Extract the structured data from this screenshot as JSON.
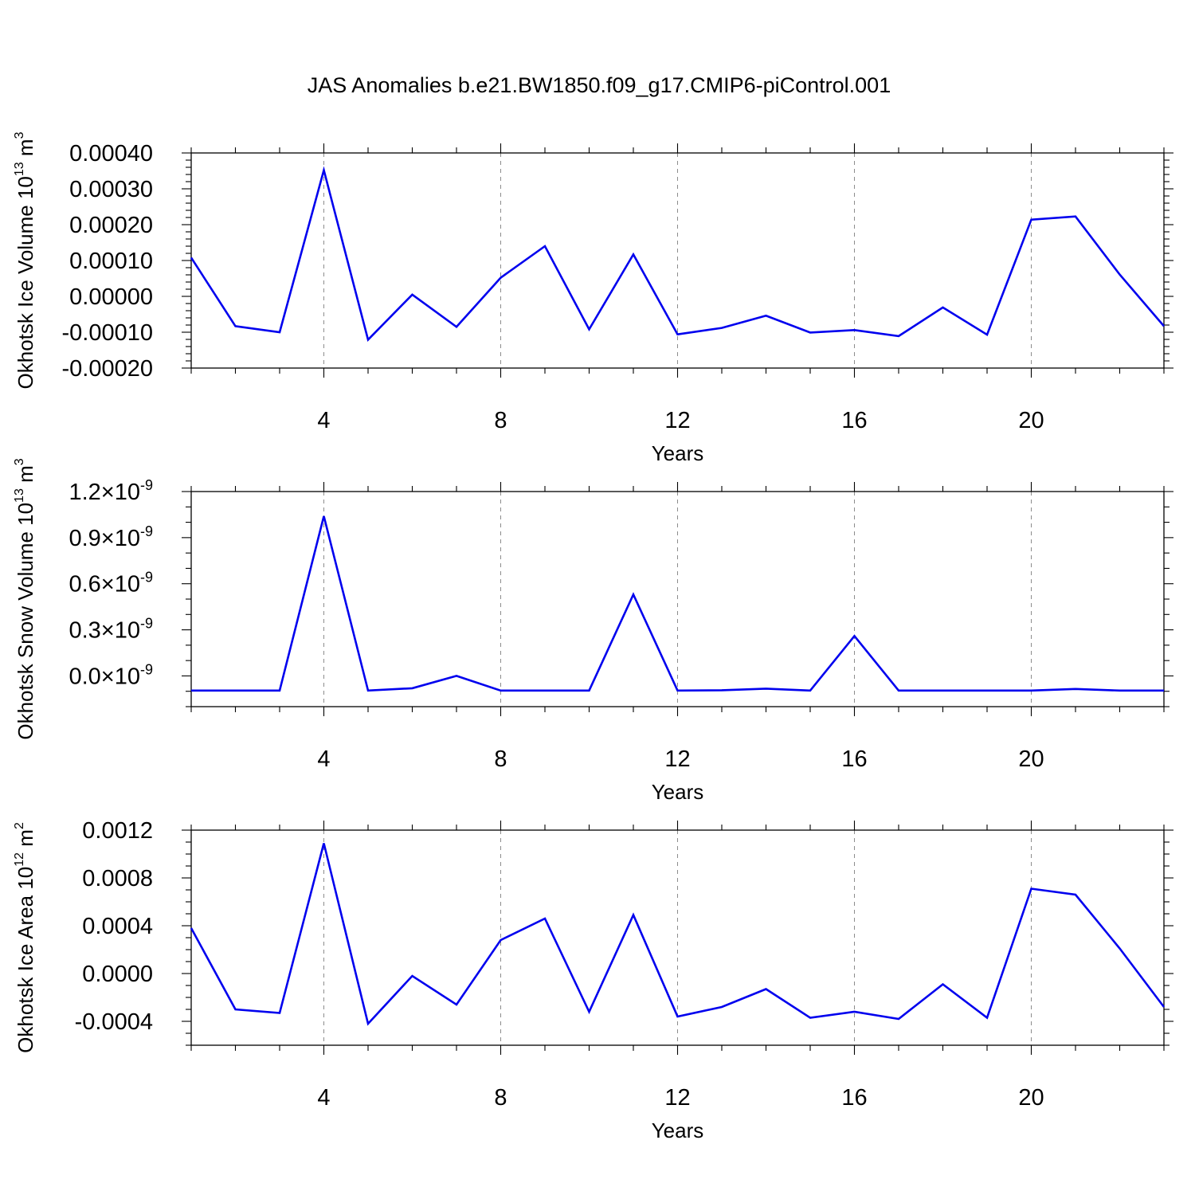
{
  "figure": {
    "title": "JAS Anomalies b.e21.BW1850.f09_g17.CMIP6-piControl.001"
  },
  "chart_data": [
    {
      "type": "line",
      "xlabel": "Years",
      "ylabel": {
        "text": "Okhotsk Ice Volume 10",
        "sup1": "13",
        "mid": " m",
        "sup2": "3"
      },
      "xlim": [
        1,
        23
      ],
      "ylim": [
        -0.0002,
        0.0004
      ],
      "x_ticks": [
        4,
        8,
        12,
        16,
        20
      ],
      "x_tick_labels": [
        "4",
        "8",
        "12",
        "16",
        "20"
      ],
      "y_ticks": [
        -0.0002,
        -0.0001,
        0.0,
        0.0001,
        0.0002,
        0.0003,
        0.0004
      ],
      "y_tick_labels": [
        "-0.00020",
        "-0.00010",
        "0.00000",
        "0.00010",
        "0.00020",
        "0.00030",
        "0.00040"
      ],
      "y_minor_step": 2e-05,
      "grid": "vertical-dashed",
      "color": "#0000ee",
      "series": [
        {
          "x": [
            1,
            2,
            3,
            4,
            5,
            6,
            7,
            8,
            9,
            10,
            11,
            12,
            13,
            14,
            15,
            16,
            17,
            18,
            19,
            20,
            21,
            22,
            23
          ],
          "values": [
            0.000108,
            -8.3e-05,
            -0.0001,
            0.000352,
            -0.000121,
            5e-06,
            -8.5e-05,
            5.2e-05,
            0.00014,
            -9.2e-05,
            0.000117,
            -0.000106,
            -8.8e-05,
            -5.4e-05,
            -0.000101,
            -9.4e-05,
            -0.000111,
            -3.1e-05,
            -0.000107,
            0.000214,
            0.000223,
            6.1e-05,
            -8.3e-05
          ]
        }
      ]
    },
    {
      "type": "line",
      "xlabel": "Years",
      "ylabel": {
        "text": "Okhotsk Snow Volume 10",
        "sup1": "13",
        "mid": " m",
        "sup2": "3"
      },
      "xlim": [
        1,
        23
      ],
      "ylim": [
        -0.2,
        1.2
      ],
      "x_ticks": [
        4,
        8,
        12,
        16,
        20
      ],
      "x_tick_labels": [
        "4",
        "8",
        "12",
        "16",
        "20"
      ],
      "y_ticks": [
        0.0,
        0.3,
        0.6,
        0.9,
        1.2
      ],
      "y_tick_labels": [
        {
          "mantissa": "0.0",
          "times": "×10",
          "exp": "-9"
        },
        {
          "mantissa": "0.3",
          "times": "×10",
          "exp": "-9"
        },
        {
          "mantissa": "0.6",
          "times": "×10",
          "exp": "-9"
        },
        {
          "mantissa": "0.9",
          "times": "×10",
          "exp": "-9"
        },
        {
          "mantissa": "1.2",
          "times": "×10",
          "exp": "-9"
        }
      ],
      "y_minor_step": 0.1,
      "grid": "vertical-dashed",
      "color": "#0000ee",
      "series": [
        {
          "x": [
            1,
            2,
            3,
            4,
            5,
            6,
            7,
            8,
            9,
            10,
            11,
            12,
            13,
            14,
            15,
            16,
            17,
            18,
            19,
            20,
            21,
            22,
            23
          ],
          "values": [
            -0.095,
            -0.095,
            -0.095,
            1.04,
            -0.095,
            -0.08,
            0.0,
            -0.095,
            -0.095,
            -0.095,
            0.53,
            -0.095,
            -0.093,
            -0.083,
            -0.095,
            0.26,
            -0.095,
            -0.095,
            -0.095,
            -0.095,
            -0.085,
            -0.095,
            -0.095
          ]
        }
      ]
    },
    {
      "type": "line",
      "xlabel": "Years",
      "ylabel": {
        "text": "Okhotsk Ice Area 10",
        "sup1": "12",
        "mid": " m",
        "sup2": "2"
      },
      "xlim": [
        1,
        23
      ],
      "ylim": [
        -0.0006,
        0.0012
      ],
      "x_ticks": [
        4,
        8,
        12,
        16,
        20
      ],
      "x_tick_labels": [
        "4",
        "8",
        "12",
        "16",
        "20"
      ],
      "y_ticks": [
        -0.0004,
        0.0,
        0.0004,
        0.0008,
        0.0012
      ],
      "y_tick_labels": [
        "-0.0004",
        "0.0000",
        "0.0004",
        "0.0008",
        "0.0012"
      ],
      "y_minor_step": 0.0001,
      "grid": "vertical-dashed",
      "color": "#0000ee",
      "series": [
        {
          "x": [
            1,
            2,
            3,
            4,
            5,
            6,
            7,
            8,
            9,
            10,
            11,
            12,
            13,
            14,
            15,
            16,
            17,
            18,
            19,
            20,
            21,
            22,
            23
          ],
          "values": [
            0.00038,
            -0.0003,
            -0.00033,
            0.00109,
            -0.00042,
            -2e-05,
            -0.00026,
            0.00028,
            0.00046,
            -0.00032,
            0.00049,
            -0.00036,
            -0.00028,
            -0.00013,
            -0.00037,
            -0.00032,
            -0.00038,
            -9e-05,
            -0.00037,
            0.00071,
            0.00066,
            0.00021,
            -0.00028
          ]
        }
      ]
    }
  ]
}
